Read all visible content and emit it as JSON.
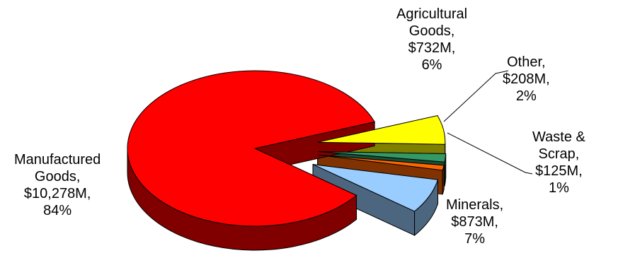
{
  "chart_data": {
    "type": "pie",
    "title": "",
    "style": "3d-exploded",
    "slices": [
      {
        "lines": [
          "Agricultural",
          "Goods,",
          "$732M,",
          "6%"
        ],
        "value": 732,
        "percent": 6,
        "color": "#FFFF00",
        "dark": "#808000"
      },
      {
        "lines": [
          "Other,",
          "$208M,",
          "2%"
        ],
        "value": 208,
        "percent": 2,
        "color": "#339966",
        "dark": "#1A4D33"
      },
      {
        "lines": [
          "Waste &",
          "Scrap,",
          "$125M,",
          "1%"
        ],
        "value": 125,
        "percent": 1,
        "color": "#FF6600",
        "dark": "#803300"
      },
      {
        "lines": [
          "Minerals,",
          "$873M,",
          "7%"
        ],
        "value": 873,
        "percent": 7,
        "color": "#99CCFF",
        "dark": "#4D6680"
      },
      {
        "lines": [
          "Manufactured",
          "Goods,",
          "$10,278M,",
          "84%"
        ],
        "value": 10278,
        "percent": 84,
        "color": "#FF0000",
        "dark": "#800000"
      }
    ]
  }
}
